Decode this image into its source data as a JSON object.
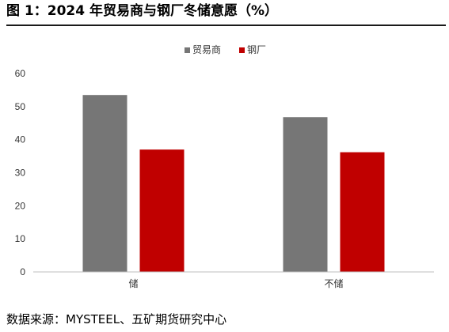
{
  "header": {
    "title": "图 1：2024 年贸易商与钢厂冬储意愿（%）"
  },
  "footer": {
    "source": "数据来源：MYSTEEL、五矿期货研究中心"
  },
  "colors": {
    "trader": "#767676",
    "mill": "#c00000",
    "axis": "#bfbfbf"
  },
  "chart_data": {
    "type": "bar",
    "categories": [
      "储",
      "不储"
    ],
    "series": [
      {
        "name": "贸易商",
        "values": [
          53.5,
          46.8
        ]
      },
      {
        "name": "钢厂",
        "values": [
          37.0,
          36.2
        ]
      }
    ],
    "ylim": [
      0,
      60
    ],
    "yticks": [
      0,
      10,
      20,
      30,
      40,
      50,
      60
    ],
    "grid": false,
    "legend": "top-center"
  }
}
